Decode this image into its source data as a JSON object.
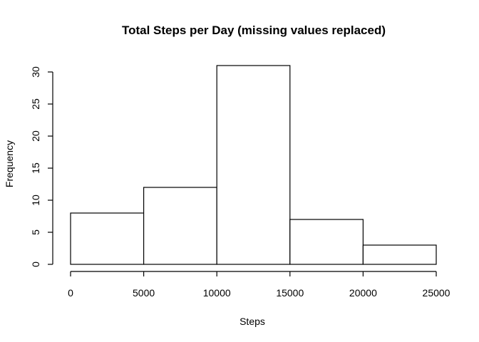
{
  "chart_data": {
    "type": "bar",
    "title": "Total Steps per Day (missing values replaced)",
    "xlabel": "Steps",
    "ylabel": "Frequency",
    "bins": [
      {
        "start": 0,
        "end": 5000,
        "count": 8
      },
      {
        "start": 5000,
        "end": 10000,
        "count": 12
      },
      {
        "start": 10000,
        "end": 15000,
        "count": 31
      },
      {
        "start": 15000,
        "end": 20000,
        "count": 7
      },
      {
        "start": 20000,
        "end": 25000,
        "count": 3
      }
    ],
    "xlim": [
      0,
      25000
    ],
    "ylim": [
      0,
      31
    ],
    "xticks": [
      "0",
      "5000",
      "10000",
      "15000",
      "20000",
      "25000"
    ],
    "yticks": [
      "0",
      "5",
      "10",
      "15",
      "20",
      "25",
      "30"
    ],
    "grid": false,
    "bar_fill": "#ffffff",
    "bar_stroke": "#000000"
  }
}
